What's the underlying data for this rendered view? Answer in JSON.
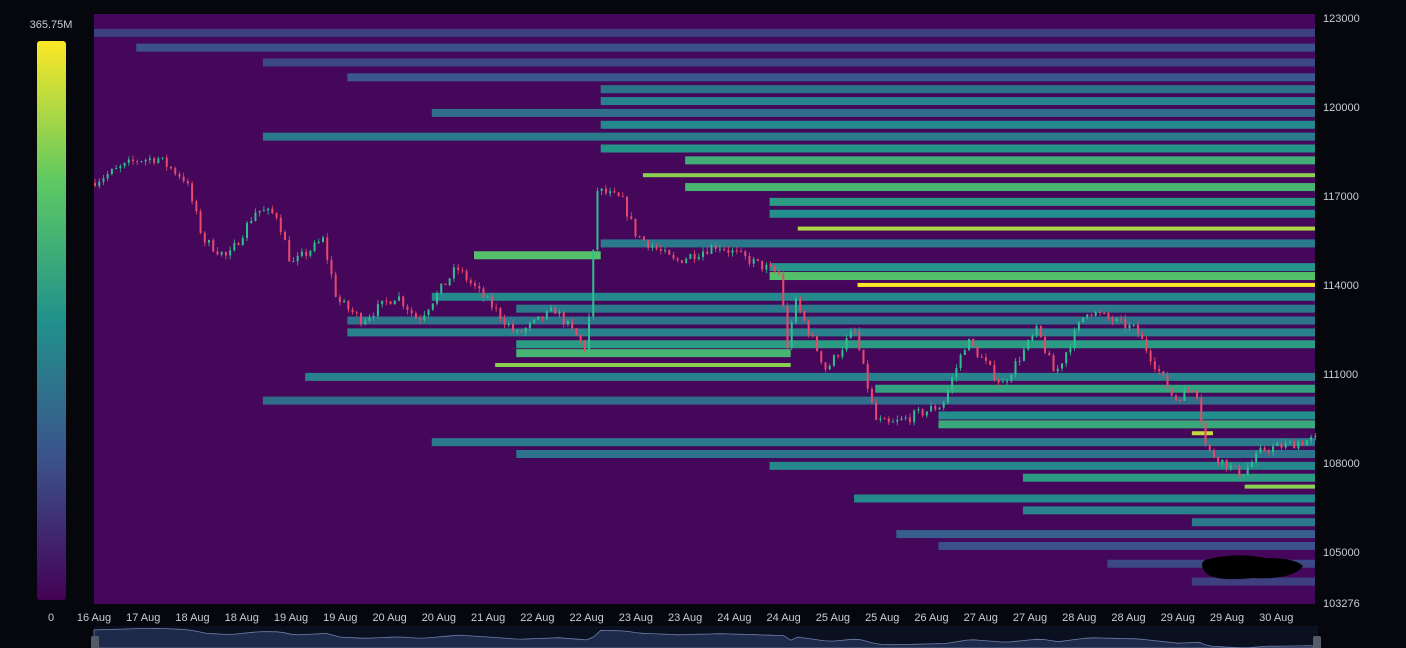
{
  "chart_data": {
    "type": "heatmap",
    "title": "",
    "colorbar": {
      "min_label": "0",
      "max_label": "365.75M",
      "min": 0,
      "max": 365.75,
      "unit": "M",
      "colors": [
        "#440154",
        "#3b528b",
        "#21918c",
        "#5ec962",
        "#fde725"
      ]
    },
    "background_color": "#45075a",
    "y_axis": {
      "position": "right",
      "range": [
        103276,
        123000
      ],
      "tick_labels": [
        "123000",
        "120000",
        "117000",
        "114000",
        "111000",
        "108000",
        "105000",
        "103276"
      ],
      "ticks": [
        123000,
        120000,
        117000,
        114000,
        111000,
        108000,
        105000,
        103276
      ]
    },
    "x_axis": {
      "range": [
        "16 Aug 00:00",
        "30 Aug 11:00"
      ],
      "tick_labels": [
        "16 Aug",
        "17 Aug",
        "18 Aug",
        "18 Aug",
        "19 Aug",
        "19 Aug",
        "20 Aug",
        "20 Aug",
        "21 Aug",
        "22 Aug",
        "22 Aug",
        "23 Aug",
        "23 Aug",
        "24 Aug",
        "24 Aug",
        "25 Aug",
        "25 Aug",
        "26 Aug",
        "27 Aug",
        "27 Aug",
        "28 Aug",
        "28 Aug",
        "29 Aug",
        "29 Aug",
        "30 Aug"
      ]
    },
    "price_series": {
      "colors": {
        "up": "#2fbf8f",
        "down": "#e8496b"
      },
      "points": [
        [
          "16 Aug 00:00",
          117440
        ],
        [
          "16 Aug 13:00",
          118210
        ],
        [
          "16 Aug 19:00",
          118280
        ],
        [
          "17 Aug 03:00",
          117540
        ],
        [
          "17 Aug 08:00",
          115520
        ],
        [
          "17 Aug 15:00",
          114910
        ],
        [
          "17 Aug 23:00",
          116530
        ],
        [
          "18 Aug 05:00",
          116360
        ],
        [
          "18 Aug 09:00",
          114680
        ],
        [
          "18 Aug 18:00",
          115520
        ],
        [
          "18 Aug 22:00",
          113500
        ],
        [
          "19 Aug 05:00",
          112820
        ],
        [
          "19 Aug 15:00",
          113660
        ],
        [
          "19 Aug 21:00",
          112820
        ],
        [
          "20 Aug 08:00",
          114570
        ],
        [
          "20 Aug 19:00",
          113160
        ],
        [
          "21 Aug 01:00",
          112320
        ],
        [
          "21 Aug 12:00",
          113160
        ],
        [
          "21 Aug 21:00",
          111810
        ],
        [
          "22 Aug 00:00",
          117200
        ],
        [
          "22 Aug 07:00",
          116870
        ],
        [
          "22 Aug 11:00",
          115690
        ],
        [
          "22 Aug 22:00",
          114780
        ],
        [
          "23 Aug 10:00",
          115350
        ],
        [
          "24 Aug 04:00",
          114340
        ],
        [
          "24 Aug 06:00",
          111810
        ],
        [
          "24 Aug 08:00",
          113500
        ],
        [
          "24 Aug 17:00",
          111140
        ],
        [
          "25 Aug 01:00",
          112490
        ],
        [
          "25 Aug 07:00",
          109450
        ],
        [
          "25 Aug 11:00",
          109280
        ],
        [
          "26 Aug 02:00",
          109960
        ],
        [
          "26 Aug 09:00",
          112150
        ],
        [
          "26 Aug 19:00",
          110630
        ],
        [
          "27 Aug 05:00",
          112490
        ],
        [
          "27 Aug 10:00",
          110970
        ],
        [
          "27 Aug 19:00",
          113160
        ],
        [
          "28 Aug 09:00",
          112490
        ],
        [
          "28 Aug 20:00",
          110130
        ],
        [
          "29 Aug 02:00",
          110630
        ],
        [
          "29 Aug 05:00",
          108440
        ],
        [
          "29 Aug 15:00",
          107600
        ],
        [
          "29 Aug 21:00",
          108440
        ],
        [
          "30 Aug 11:00",
          108780
        ]
      ]
    },
    "bands": [
      [
        122500,
        "16 Aug 00:00",
        null,
        70
      ],
      [
        122000,
        "16 Aug 12:00",
        null,
        90
      ],
      [
        121500,
        "18 Aug 00:00",
        null,
        80
      ],
      [
        121000,
        "19 Aug 00:00",
        null,
        100
      ],
      [
        120600,
        "22 Aug 00:00",
        null,
        140
      ],
      [
        120200,
        "22 Aug 00:00",
        null,
        160
      ],
      [
        119800,
        "20 Aug 00:00",
        null,
        130
      ],
      [
        119400,
        "22 Aug 00:00",
        null,
        170
      ],
      [
        119000,
        "18 Aug 00:00",
        null,
        150
      ],
      [
        118600,
        "22 Aug 00:00",
        null,
        190
      ],
      [
        118200,
        "23 Aug 00:00",
        null,
        230
      ],
      [
        117700,
        "22 Aug 12:00",
        null,
        300
      ],
      [
        117300,
        "23 Aug 00:00",
        null,
        240
      ],
      [
        116800,
        "24 Aug 00:00",
        null,
        200
      ],
      [
        116400,
        "24 Aug 00:00",
        null,
        180
      ],
      [
        115900,
        "24 Aug 08:00",
        null,
        320
      ],
      [
        115400,
        "22 Aug 00:00",
        null,
        150
      ],
      [
        115000,
        "20 Aug 12:00",
        "22 Aug 00:00",
        260
      ],
      [
        114600,
        "24 Aug 00:00",
        null,
        190
      ],
      [
        114300,
        "24 Aug 00:00",
        null,
        260
      ],
      [
        114000,
        "25 Aug 01:00",
        null,
        365
      ],
      [
        113600,
        "20 Aug 00:00",
        null,
        170
      ],
      [
        113200,
        "21 Aug 00:00",
        null,
        150
      ],
      [
        112800,
        "19 Aug 00:00",
        null,
        140
      ],
      [
        112400,
        "19 Aug 00:00",
        null,
        160
      ],
      [
        112000,
        "21 Aug 00:00",
        null,
        200
      ],
      [
        111700,
        "21 Aug 00:00",
        "24 Aug 06:00",
        240
      ],
      [
        111300,
        "20 Aug 18:00",
        "24 Aug 06:00",
        300
      ],
      [
        110900,
        "18 Aug 12:00",
        null,
        160
      ],
      [
        110500,
        "25 Aug 06:00",
        null,
        210
      ],
      [
        110100,
        "18 Aug 00:00",
        null,
        130
      ],
      [
        109600,
        "26 Aug 00:00",
        null,
        180
      ],
      [
        109300,
        "26 Aug 00:00",
        null,
        220
      ],
      [
        109000,
        "29 Aug 00:00",
        "29 Aug 06:00",
        330
      ],
      [
        108700,
        "20 Aug 00:00",
        null,
        150
      ],
      [
        108300,
        "21 Aug 00:00",
        null,
        140
      ],
      [
        107900,
        "24 Aug 00:00",
        null,
        170
      ],
      [
        107500,
        "27 Aug 00:00",
        null,
        200
      ],
      [
        107200,
        "29 Aug 15:00",
        null,
        300
      ],
      [
        106800,
        "25 Aug 00:00",
        null,
        170
      ],
      [
        106400,
        "27 Aug 00:00",
        null,
        160
      ],
      [
        106000,
        "29 Aug 00:00",
        null,
        150
      ],
      [
        105600,
        "25 Aug 12:00",
        null,
        110
      ],
      [
        105200,
        "26 Aug 00:00",
        null,
        90
      ],
      [
        104600,
        "28 Aug 00:00",
        null,
        80
      ],
      [
        104000,
        "29 Aug 00:00",
        null,
        70
      ]
    ],
    "navigator": {
      "fill": "#1e2a4a",
      "line": "#6f7fa8"
    }
  }
}
